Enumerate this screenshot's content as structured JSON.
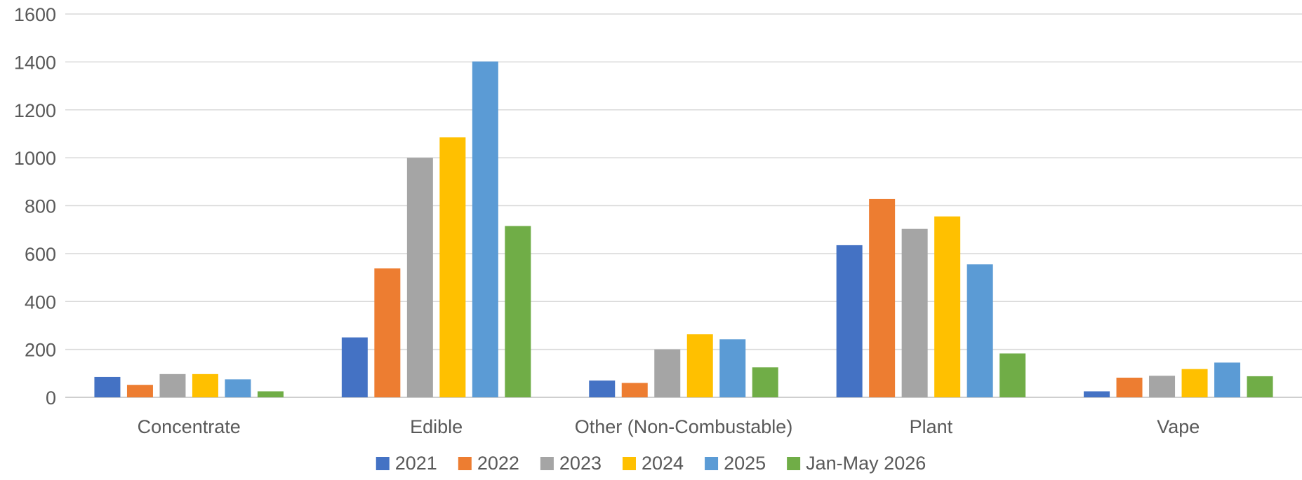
{
  "chart_data": {
    "type": "bar",
    "categories": [
      "Concentrate",
      "Edible",
      "Other (Non-Combustable)",
      "Plant",
      "Vape"
    ],
    "series": [
      {
        "name": "2021",
        "color": "#4472C4",
        "values": [
          85,
          250,
          70,
          635,
          25
        ]
      },
      {
        "name": "2022",
        "color": "#ED7D31",
        "values": [
          52,
          538,
          60,
          828,
          82
        ]
      },
      {
        "name": "2023",
        "color": "#A5A5A5",
        "values": [
          97,
          1000,
          200,
          703,
          90
        ]
      },
      {
        "name": "2024",
        "color": "#FFC000",
        "values": [
          97,
          1085,
          263,
          755,
          118
        ]
      },
      {
        "name": "2025",
        "color": "#5B9BD5",
        "values": [
          75,
          1402,
          242,
          555,
          145
        ]
      },
      {
        "name": "Jan-May 2026",
        "color": "#70AD47",
        "values": [
          25,
          715,
          125,
          183,
          88
        ]
      }
    ],
    "y_ticks": [
      "0",
      "200",
      "400",
      "600",
      "800",
      "1000",
      "1200",
      "1400",
      "1600"
    ],
    "ylim": [
      0,
      1600
    ],
    "grid": true,
    "legend": "bottom"
  }
}
